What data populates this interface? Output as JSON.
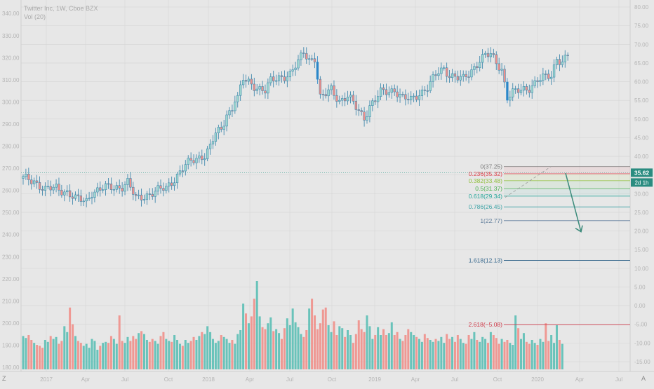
{
  "legend": {
    "symbol_line": "Twitter Inc, 1W, Cboe BZX",
    "volume_line": "Vol (20)"
  },
  "colors": {
    "up": "#5bbfb5",
    "down": "#f08f8a",
    "blue_candle": "#2a87c9",
    "grid": "#d6d6d6",
    "background": "#e7e7e7",
    "axis_text": "#b5b5b5",
    "arrow": "#3a8a7a"
  },
  "bottom_bar": {
    "left": "Z",
    "right": "A"
  },
  "current_price": {
    "price": "35.62",
    "countdown": "2d 1h"
  },
  "chart_data": {
    "type": "candlestick",
    "symbol": "Twitter Inc",
    "interval": "1W",
    "exchange": "Cboe BZX",
    "left_axis_ticks": [
      "180.00",
      "190.00",
      "200.00",
      "210.00",
      "220.00",
      "230.00",
      "240.00",
      "250.00",
      "260.00",
      "270.00",
      "280.00",
      "290.00",
      "300.00",
      "310.00",
      "320.00",
      "330.00",
      "340.00"
    ],
    "right_axis_ticks": [
      "-15.00",
      "-10.00",
      "-5.00",
      "0.00",
      "5.00",
      "10.00",
      "15.00",
      "20.00",
      "25.00",
      "30.00",
      "35.00",
      "40.00",
      "45.00",
      "50.00",
      "55.00",
      "60.00",
      "65.00",
      "70.00",
      "75.00",
      "80.00"
    ],
    "x_tick_labels": [
      "2017",
      "Apr",
      "Jul",
      "Oct",
      "2018",
      "Apr",
      "Jul",
      "Oct",
      "2019",
      "Apr",
      "Jul",
      "Oct",
      "2020",
      "Apr",
      "Jul"
    ],
    "ylim_right": [
      -17,
      81
    ],
    "volume_scale": "relative",
    "fibonacci": {
      "levels": [
        {
          "ratio": "0",
          "price": "37.25",
          "label": "0(37.25)"
        },
        {
          "ratio": "0.236",
          "price": "35.32",
          "label": "0.236(35.32)"
        },
        {
          "ratio": "0.382",
          "price": "33.48",
          "label": "0.382(33.48)"
        },
        {
          "ratio": "0.5",
          "price": "31.37",
          "label": "0.5(31.37)"
        },
        {
          "ratio": "0.618",
          "price": "29.34",
          "label": "0.618(29.34)"
        },
        {
          "ratio": "0.786",
          "price": "26.45",
          "label": "0.786(26.45)"
        },
        {
          "ratio": "1",
          "price": "22.77",
          "label": "1(22.77)"
        },
        {
          "ratio": "1.618",
          "price": "12.13",
          "label": "1.618(12.13)"
        },
        {
          "ratio": "2.618",
          "price": "-5.08",
          "label": "2.618(−5.08)"
        }
      ]
    },
    "anchors": [
      [
        0,
        34.0
      ],
      [
        4,
        33.5
      ],
      [
        8,
        31.0
      ],
      [
        12,
        31.5
      ],
      [
        16,
        30.5
      ],
      [
        19,
        28.5
      ],
      [
        23,
        28.0
      ],
      [
        25,
        30.5
      ],
      [
        30,
        31.5
      ],
      [
        36,
        32.0
      ],
      [
        38,
        33.0
      ],
      [
        41,
        28.5
      ],
      [
        44,
        29.5
      ],
      [
        48,
        30.5
      ],
      [
        52,
        31.5
      ],
      [
        56,
        35.0
      ],
      [
        59,
        37.5
      ],
      [
        63,
        39.5
      ],
      [
        66,
        40.5
      ],
      [
        68,
        42.5
      ],
      [
        70,
        46.0
      ],
      [
        72,
        47.0
      ],
      [
        74,
        51.5
      ],
      [
        75,
        52.0
      ],
      [
        76,
        53.0
      ],
      [
        77,
        55.5
      ],
      [
        78,
        55.5
      ],
      [
        80,
        60.5
      ],
      [
        84,
        59.0
      ],
      [
        88,
        57.5
      ],
      [
        90,
        60.0
      ],
      [
        94,
        61.5
      ],
      [
        97,
        62.0
      ],
      [
        100,
        65.0
      ],
      [
        102,
        68.0
      ],
      [
        104,
        66.0
      ],
      [
        106,
        66.5
      ],
      [
        108,
        55.5
      ],
      [
        110,
        56.5
      ],
      [
        112,
        58.0
      ],
      [
        115,
        55.0
      ],
      [
        118,
        56.0
      ],
      [
        121,
        53.0
      ],
      [
        124,
        50.5
      ],
      [
        126,
        53.5
      ],
      [
        128,
        55.0
      ],
      [
        130,
        57.0
      ],
      [
        133,
        57.5
      ],
      [
        135,
        58.0
      ],
      [
        138,
        55.5
      ],
      [
        141,
        55.0
      ],
      [
        144,
        57.0
      ],
      [
        147,
        58.5
      ],
      [
        149,
        60.5
      ],
      [
        151,
        62.5
      ],
      [
        153,
        63.5
      ],
      [
        155,
        62.0
      ],
      [
        158,
        61.0
      ],
      [
        160,
        60.5
      ],
      [
        162,
        62.0
      ],
      [
        164,
        64.0
      ],
      [
        166,
        66.0
      ],
      [
        168,
        67.0
      ],
      [
        170,
        67.0
      ],
      [
        172,
        65.0
      ],
      [
        174,
        63.5
      ],
      [
        176,
        56.0
      ],
      [
        178,
        57.0
      ],
      [
        181,
        57.5
      ],
      [
        184,
        58.5
      ],
      [
        187,
        60.5
      ],
      [
        190,
        61.0
      ],
      [
        192,
        61.5
      ],
      [
        194,
        66.5
      ],
      [
        196,
        65.5
      ],
      [
        198,
        67.0
      ]
    ],
    "volumes": [
      0.34,
      0.32,
      0.35,
      0.3,
      0.27,
      0.25,
      0.24,
      0.22,
      0.3,
      0.28,
      0.34,
      0.31,
      0.33,
      0.26,
      0.29,
      0.44,
      0.38,
      0.63,
      0.46,
      0.34,
      0.29,
      0.27,
      0.24,
      0.26,
      0.22,
      0.31,
      0.29,
      0.2,
      0.24,
      0.27,
      0.28,
      0.27,
      0.34,
      0.31,
      0.26,
      0.55,
      0.29,
      0.27,
      0.33,
      0.29,
      0.34,
      0.31,
      0.37,
      0.39,
      0.36,
      0.3,
      0.28,
      0.31,
      0.29,
      0.26,
      0.34,
      0.38,
      0.31,
      0.29,
      0.28,
      0.35,
      0.3,
      0.26,
      0.24,
      0.3,
      0.27,
      0.29,
      0.33,
      0.3,
      0.34,
      0.38,
      0.36,
      0.44,
      0.38,
      0.31,
      0.27,
      0.29,
      0.35,
      0.33,
      0.31,
      0.27,
      0.3,
      0.26,
      0.36,
      0.4,
      0.67,
      0.57,
      0.47,
      0.54,
      0.72,
      0.9,
      0.54,
      0.43,
      0.41,
      0.47,
      0.53,
      0.39,
      0.41,
      0.37,
      0.31,
      0.42,
      0.52,
      0.45,
      0.62,
      0.48,
      0.43,
      0.36,
      0.33,
      0.4,
      0.62,
      0.72,
      0.55,
      0.41,
      0.47,
      0.61,
      0.63,
      0.45,
      0.38,
      0.49,
      0.35,
      0.44,
      0.42,
      0.33,
      0.4,
      0.35,
      0.27,
      0.36,
      0.5,
      0.41,
      0.38,
      0.55,
      0.44,
      0.31,
      0.35,
      0.43,
      0.35,
      0.41,
      0.35,
      0.37,
      0.48,
      0.35,
      0.38,
      0.31,
      0.29,
      0.35,
      0.41,
      0.38,
      0.35,
      0.33,
      0.31,
      0.28,
      0.36,
      0.32,
      0.3,
      0.28,
      0.31,
      0.29,
      0.33,
      0.27,
      0.36,
      0.31,
      0.33,
      0.28,
      0.35,
      0.31,
      0.27,
      0.26,
      0.35,
      0.31,
      0.38,
      0.3,
      0.28,
      0.33,
      0.31,
      0.27,
      0.38,
      0.35,
      0.32,
      0.26,
      0.31,
      0.28,
      0.3,
      0.27,
      0.25,
      0.55,
      0.42,
      0.31,
      0.37,
      0.28,
      0.26,
      0.3,
      0.27,
      0.25,
      0.31,
      0.28,
      0.47,
      0.29,
      0.35,
      0.27,
      0.45,
      0.3,
      0.26
    ]
  }
}
